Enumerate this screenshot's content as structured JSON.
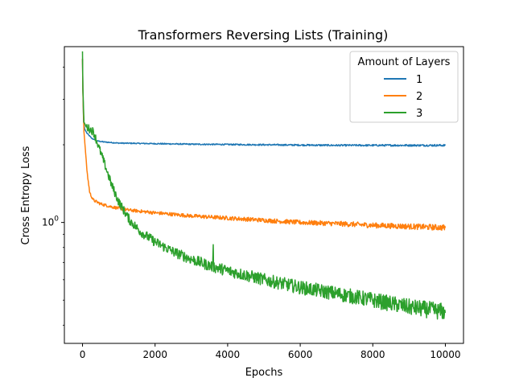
{
  "chart_data": {
    "type": "line",
    "title": "Transformers Reversing Lists (Training)",
    "xlabel": "Epochs",
    "ylabel": "Cross Entropy Loss",
    "xlim": [
      -500,
      10500
    ],
    "ylim": [
      0.34,
      4.8
    ],
    "y_scale": "log",
    "grid": false,
    "x_ticks": [
      0,
      2000,
      4000,
      6000,
      8000,
      10000
    ],
    "x_tick_labels": [
      "0",
      "2000",
      "4000",
      "6000",
      "8000",
      "10000"
    ],
    "y_major_tick": {
      "value": 1.0,
      "label_base": "10",
      "label_exp": "0"
    },
    "legend": {
      "title": "Amount of Layers",
      "placement": "top-right"
    },
    "series": [
      {
        "name": "1",
        "color": "#1f77b4",
        "noise": 0.004,
        "points": [
          [
            0,
            4.3
          ],
          [
            10,
            3.3
          ],
          [
            30,
            2.45
          ],
          [
            60,
            2.3
          ],
          [
            120,
            2.22
          ],
          [
            250,
            2.12
          ],
          [
            400,
            2.07
          ],
          [
            600,
            2.05
          ],
          [
            1000,
            2.03
          ],
          [
            2000,
            2.02
          ],
          [
            3000,
            2.01
          ],
          [
            5000,
            2.0
          ],
          [
            7000,
            1.99
          ],
          [
            10000,
            1.99
          ]
        ]
      },
      {
        "name": "2",
        "color": "#ff7f0e",
        "noise": 0.012,
        "points": [
          [
            0,
            4.3
          ],
          [
            10,
            3.2
          ],
          [
            40,
            2.25
          ],
          [
            80,
            1.9
          ],
          [
            130,
            1.55
          ],
          [
            200,
            1.3
          ],
          [
            300,
            1.22
          ],
          [
            500,
            1.18
          ],
          [
            800,
            1.15
          ],
          [
            1200,
            1.12
          ],
          [
            2000,
            1.09
          ],
          [
            3000,
            1.06
          ],
          [
            4000,
            1.04
          ],
          [
            5000,
            1.02
          ],
          [
            6000,
            1.0
          ],
          [
            7000,
            0.99
          ],
          [
            8000,
            0.975
          ],
          [
            9000,
            0.965
          ],
          [
            10000,
            0.955
          ]
        ]
      },
      {
        "name": "3",
        "color": "#2ca02c",
        "noise": 0.035,
        "points": [
          [
            0,
            4.6
          ],
          [
            10,
            3.3
          ],
          [
            40,
            2.45
          ],
          [
            100,
            2.35
          ],
          [
            200,
            2.3
          ],
          [
            300,
            2.25
          ],
          [
            400,
            2.05
          ],
          [
            600,
            1.7
          ],
          [
            800,
            1.4
          ],
          [
            1000,
            1.2
          ],
          [
            1300,
            1.02
          ],
          [
            1600,
            0.92
          ],
          [
            2000,
            0.84
          ],
          [
            2500,
            0.77
          ],
          [
            3000,
            0.72
          ],
          [
            3500,
            0.68
          ],
          [
            4000,
            0.65
          ],
          [
            5000,
            0.6
          ],
          [
            6000,
            0.56
          ],
          [
            7000,
            0.53
          ],
          [
            8000,
            0.5
          ],
          [
            9000,
            0.47
          ],
          [
            10000,
            0.45
          ]
        ],
        "spike": {
          "x": 3600,
          "y": 0.82
        }
      }
    ]
  }
}
